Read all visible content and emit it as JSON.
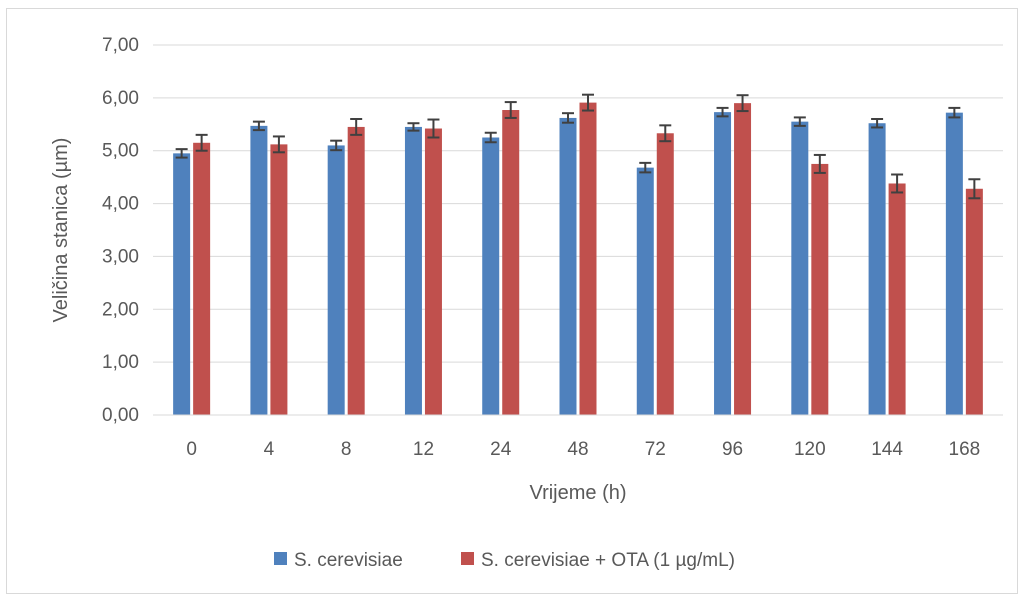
{
  "chart_data": {
    "type": "bar",
    "title": "",
    "xlabel": "Vrijeme (h)",
    "ylabel": "Veličina stanica (µm)",
    "ylim": [
      0,
      7
    ],
    "yticks": [
      "0,00",
      "1,00",
      "2,00",
      "3,00",
      "4,00",
      "5,00",
      "6,00",
      "7,00"
    ],
    "grid": true,
    "legend_position": "bottom",
    "categories": [
      "0",
      "4",
      "8",
      "12",
      "24",
      "48",
      "72",
      "96",
      "120",
      "144",
      "168"
    ],
    "series": [
      {
        "name": "S. cerevisiae",
        "color": "#4F81BD",
        "values": [
          4.95,
          5.47,
          5.1,
          5.45,
          5.25,
          5.62,
          4.68,
          5.73,
          5.55,
          5.52,
          5.72
        ],
        "errors": [
          0.08,
          0.08,
          0.09,
          0.07,
          0.09,
          0.09,
          0.09,
          0.08,
          0.08,
          0.08,
          0.09
        ]
      },
      {
        "name": "S. cerevisiae + OTA (1 µg/mL)",
        "color": "#C0504D",
        "values": [
          5.15,
          5.12,
          5.45,
          5.42,
          5.77,
          5.91,
          5.33,
          5.9,
          4.75,
          4.38,
          4.28
        ],
        "errors": [
          0.15,
          0.15,
          0.15,
          0.17,
          0.15,
          0.15,
          0.15,
          0.15,
          0.17,
          0.17,
          0.18
        ]
      }
    ]
  }
}
